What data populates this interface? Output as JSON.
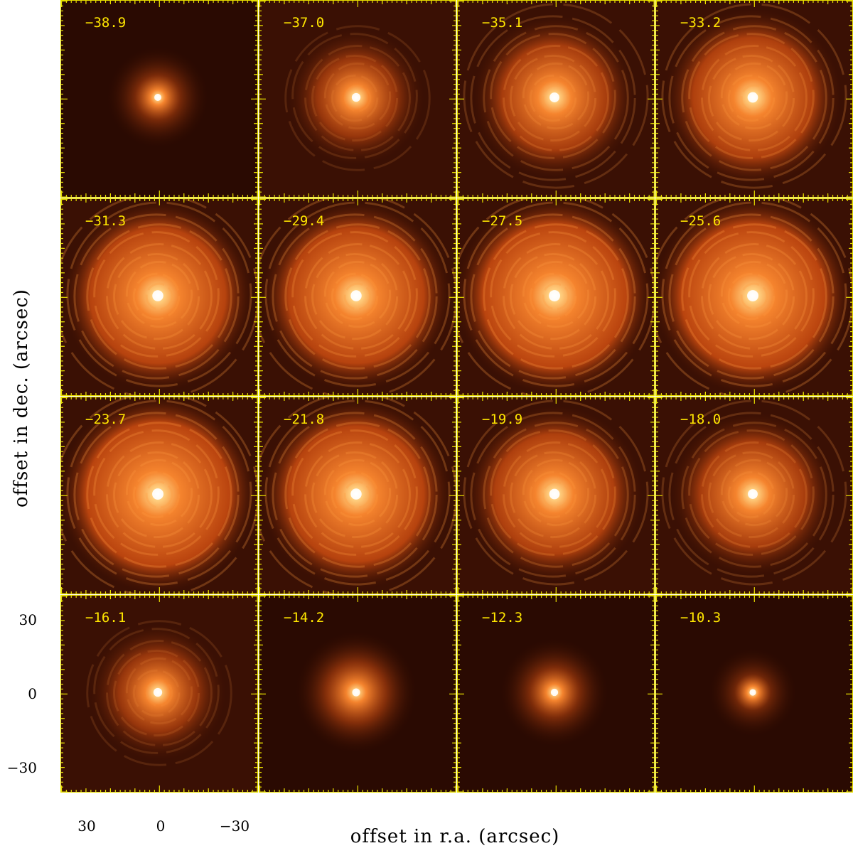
{
  "figure": {
    "xlabel": "offset in r.a. (arcsec)",
    "ylabel": "offset in dec. (arcsec)",
    "xticks": [
      "30",
      "0",
      "−30"
    ],
    "yticks": [
      "30",
      "0",
      "−30"
    ],
    "colors": {
      "frame": "#e8e000",
      "label": "#ffe600",
      "glow": "#ff7a1a",
      "background": "#1d0500"
    }
  },
  "panels": [
    {
      "label": "−38.9",
      "level": 0.25
    },
    {
      "label": "−37.0",
      "level": 0.55
    },
    {
      "label": "−35.1",
      "level": 0.75
    },
    {
      "label": "−33.2",
      "level": 0.85
    },
    {
      "label": "−31.3",
      "level": 0.95
    },
    {
      "label": "−29.4",
      "level": 0.95
    },
    {
      "label": "−27.5",
      "level": 1.0
    },
    {
      "label": "−25.6",
      "level": 1.0
    },
    {
      "label": "−23.7",
      "level": 1.0
    },
    {
      "label": "−21.8",
      "level": 0.95
    },
    {
      "label": "−19.9",
      "level": 0.85
    },
    {
      "label": "−18.0",
      "level": 0.75
    },
    {
      "label": "−16.1",
      "level": 0.55
    },
    {
      "label": "−14.2",
      "level": 0.4
    },
    {
      "label": "−12.3",
      "level": 0.3
    },
    {
      "label": "−10.3",
      "level": 0.15
    }
  ]
}
